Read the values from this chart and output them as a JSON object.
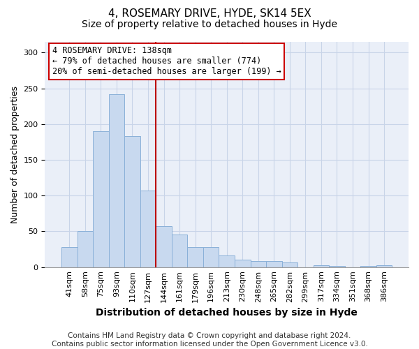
{
  "title": "4, ROSEMARY DRIVE, HYDE, SK14 5EX",
  "subtitle": "Size of property relative to detached houses in Hyde",
  "xlabel": "Distribution of detached houses by size in Hyde",
  "ylabel": "Number of detached properties",
  "categories": [
    "41sqm",
    "58sqm",
    "75sqm",
    "93sqm",
    "110sqm",
    "127sqm",
    "144sqm",
    "161sqm",
    "179sqm",
    "196sqm",
    "213sqm",
    "230sqm",
    "248sqm",
    "265sqm",
    "282sqm",
    "299sqm",
    "317sqm",
    "334sqm",
    "351sqm",
    "368sqm",
    "386sqm"
  ],
  "values": [
    28,
    50,
    190,
    242,
    183,
    107,
    57,
    46,
    28,
    28,
    16,
    10,
    8,
    8,
    7,
    0,
    3,
    2,
    0,
    2,
    3
  ],
  "bar_color": "#c8d9ef",
  "bar_edge_color": "#8ab0d8",
  "grid_color": "#c8d4e8",
  "background_color": "#eaeff8",
  "vline_index": 6,
  "vline_color": "#bb0000",
  "annotation_text": "4 ROSEMARY DRIVE: 138sqm\n← 79% of detached houses are smaller (774)\n20% of semi-detached houses are larger (199) →",
  "annotation_box_color": "#ffffff",
  "annotation_box_edge_color": "#cc0000",
  "footer_text": "Contains HM Land Registry data © Crown copyright and database right 2024.\nContains public sector information licensed under the Open Government Licence v3.0.",
  "ylim": [
    0,
    315
  ],
  "title_fontsize": 11,
  "subtitle_fontsize": 10,
  "xlabel_fontsize": 10,
  "ylabel_fontsize": 9,
  "tick_fontsize": 8,
  "footer_fontsize": 7.5,
  "annotation_fontsize": 8.5
}
